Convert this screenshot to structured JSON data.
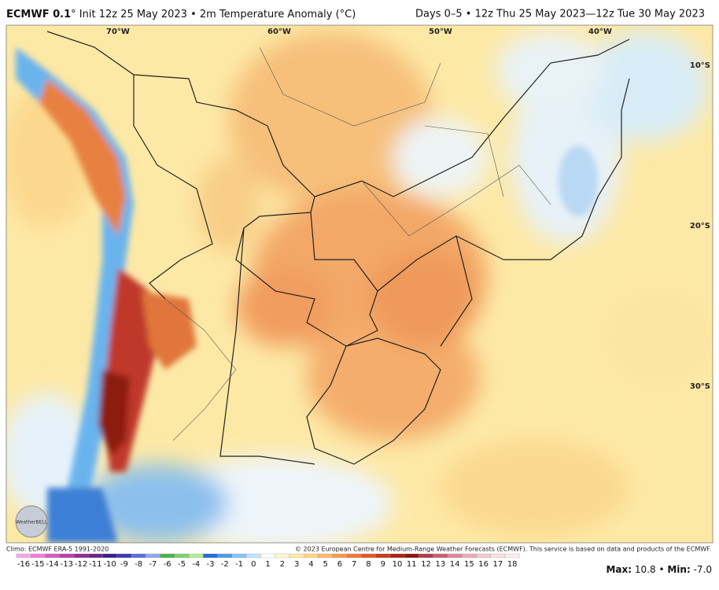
{
  "header": {
    "model": "ECMWF 0.1",
    "title": "° Init 12z 25 May 2023 • 2m Temperature Anomaly (°C)",
    "period": "Days 0–5 • 12z Thu 25 May 2023—12z Tue 30 May 2023"
  },
  "map": {
    "lon_labels": [
      "70°W",
      "60°W",
      "50°W",
      "40°W"
    ],
    "lat_labels": [
      "10°S",
      "20°S",
      "30°S"
    ],
    "logo": "WeatherBELL"
  },
  "footer": {
    "climo": "Climo: ECMWF ERA-5 1991-2020",
    "copyright": "© 2023 European Centre for Medium-Range Weather Forecasts (ECMWF). This service is based on data and products of the ECMWF.",
    "stats": {
      "max_label": "Max:",
      "max": "10.8",
      "sep": "•",
      "min_label": "Min:",
      "min": "-7.0"
    }
  },
  "colorbar": {
    "ticks": [
      -16,
      -15,
      -14,
      -13,
      -12,
      -11,
      -10,
      -9,
      -8,
      -7,
      -6,
      -5,
      -4,
      -3,
      -2,
      -1,
      0,
      1,
      2,
      3,
      4,
      5,
      6,
      7,
      8,
      9,
      10,
      11,
      12,
      13,
      14,
      15,
      16,
      17,
      18
    ],
    "colors": [
      "#f7a8e8",
      "#ee7fd9",
      "#d95cc6",
      "#b93fae",
      "#932c95",
      "#6b2686",
      "#3b1f8c",
      "#3a3db8",
      "#5d6fd6",
      "#8fa6ea",
      "#4ab34a",
      "#7fd36a",
      "#b6ea9a",
      "#1f6fd6",
      "#4d9ae6",
      "#86c3f2",
      "#c2e3fa",
      "#ffffff",
      "#fff8cc",
      "#ffe9a3",
      "#ffd480",
      "#ffb866",
      "#f99a4d",
      "#ee7a3a",
      "#dd5a2b",
      "#c43d20",
      "#a82417",
      "#8c1510",
      "#b23b4c",
      "#cc5f72",
      "#dd8998",
      "#e9adb7",
      "#f2cbd0",
      "#f7e0e3",
      "#fbeef0"
    ]
  }
}
